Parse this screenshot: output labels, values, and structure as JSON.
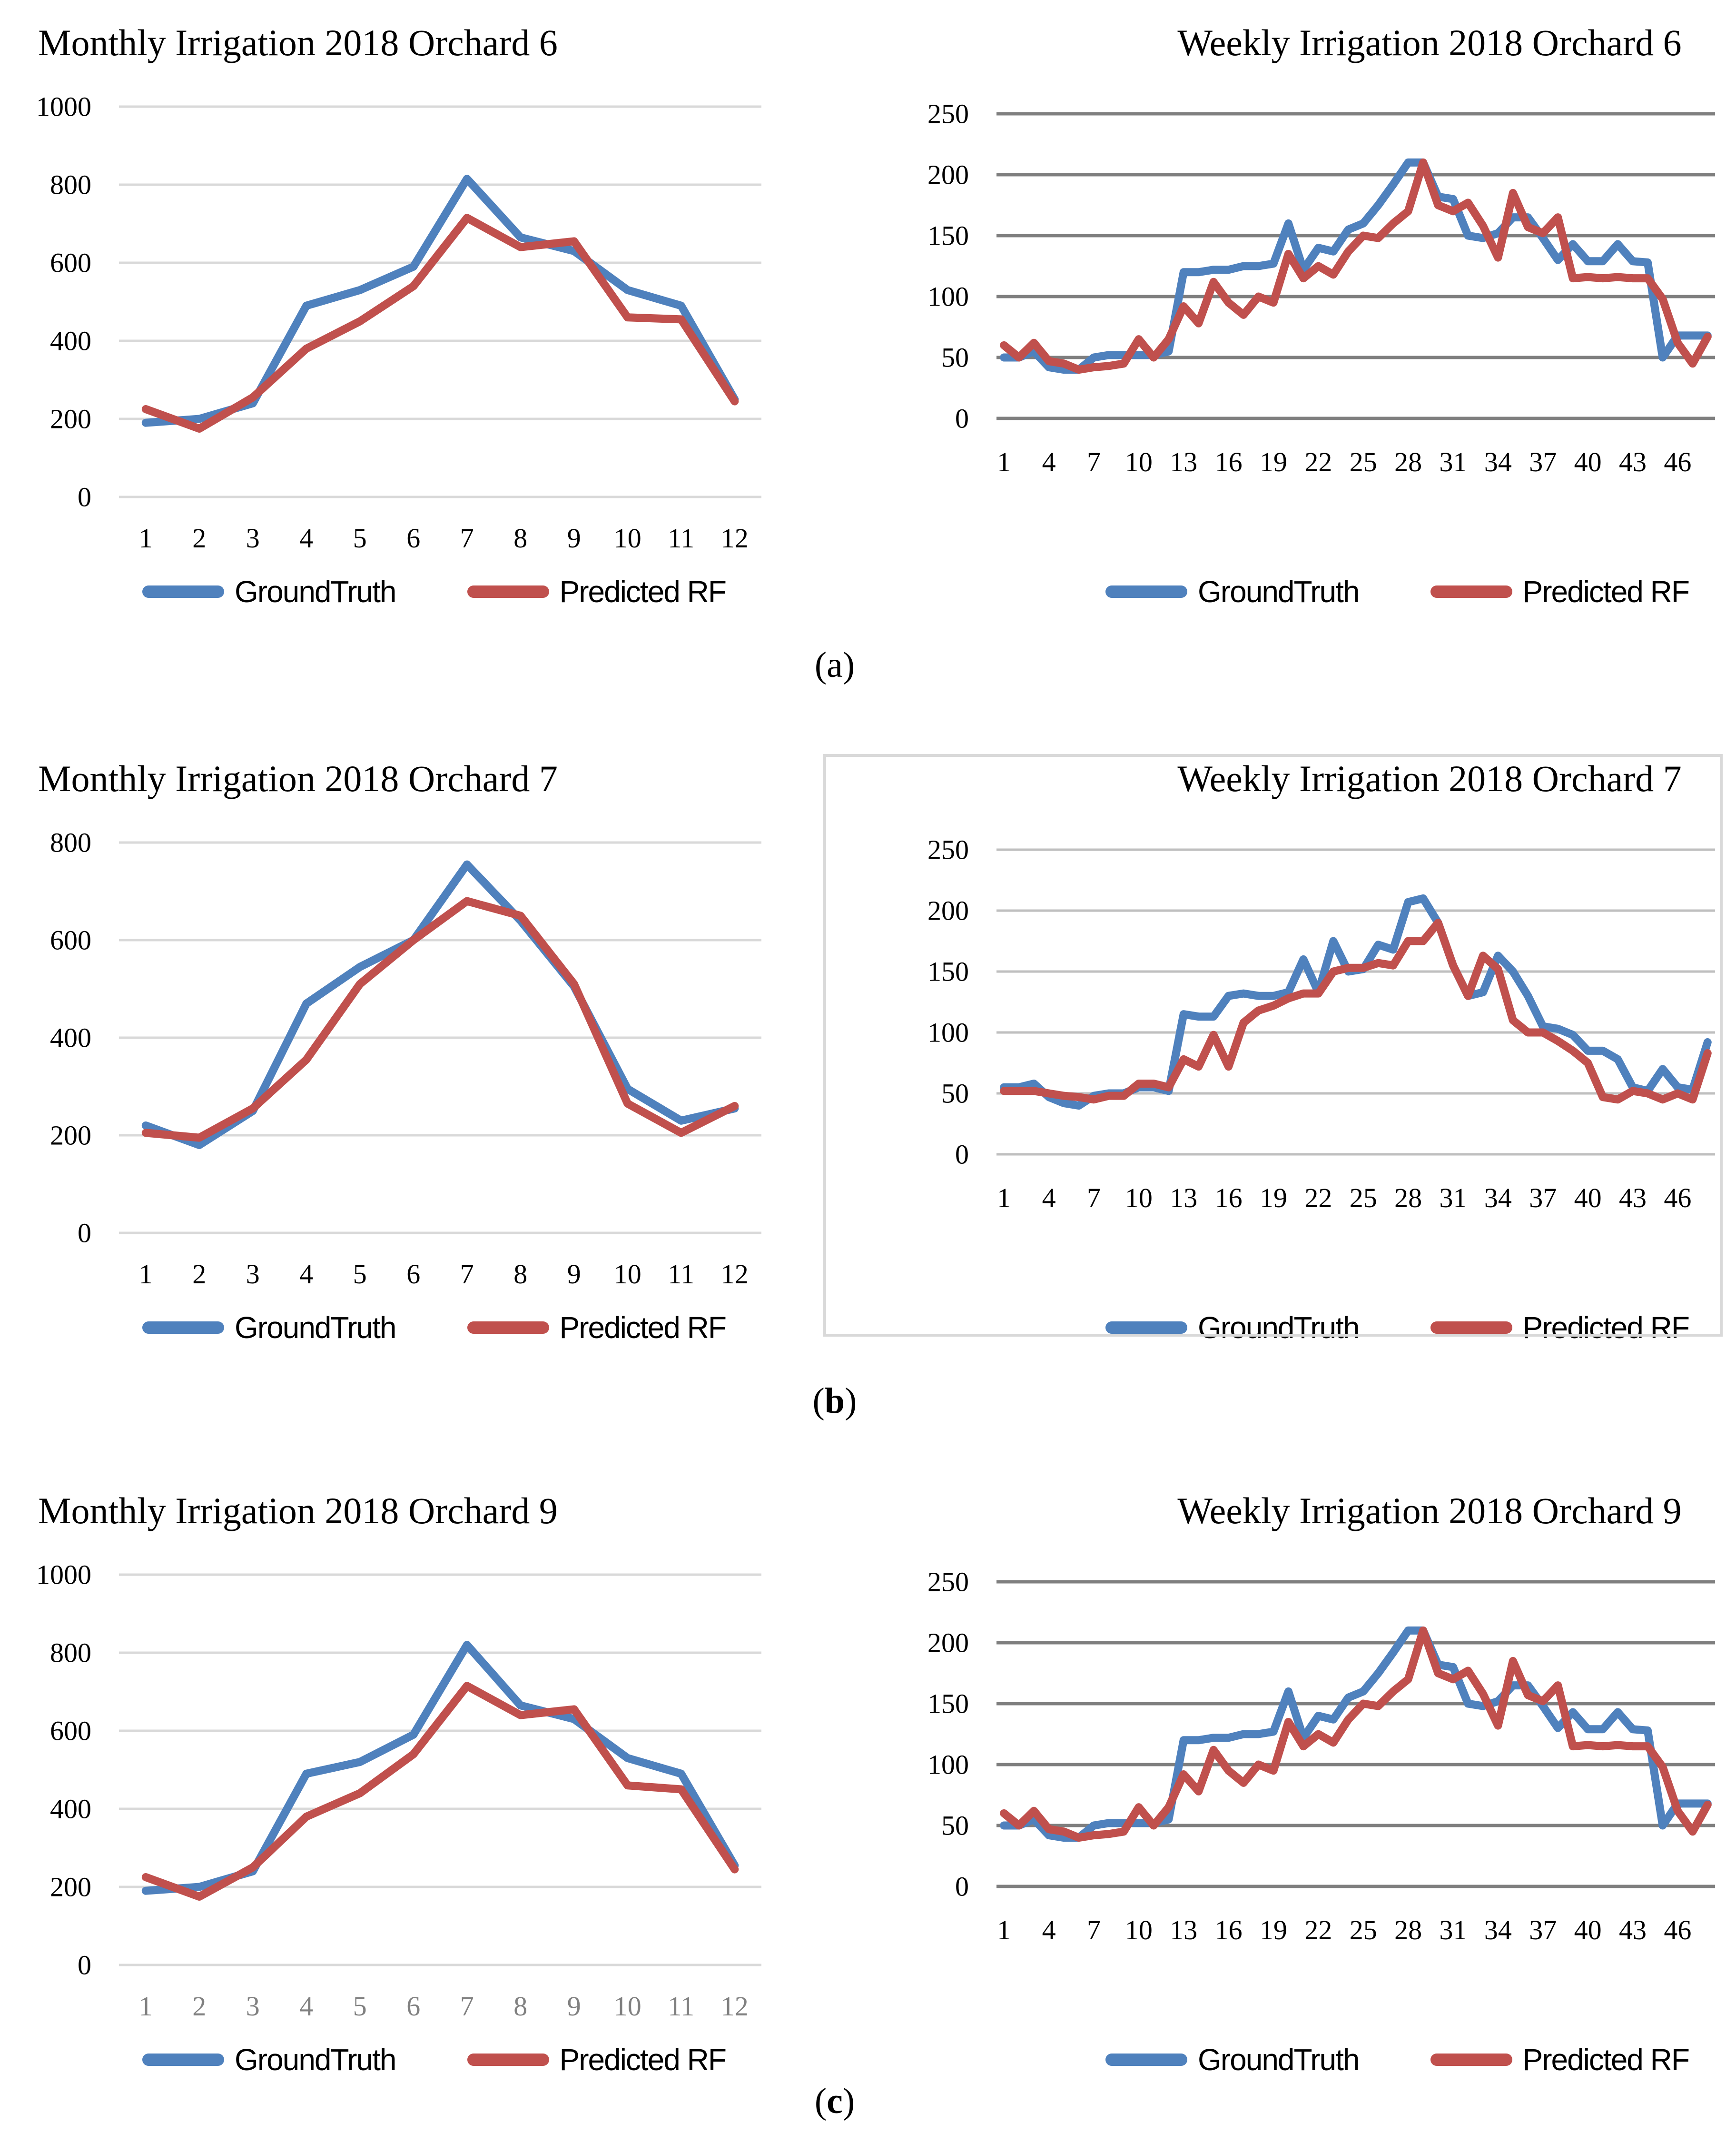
{
  "figure": {
    "captions": [
      {
        "open": "(",
        "letter": "a",
        "close": ")",
        "bold": false
      },
      {
        "open": "(",
        "letter": "b",
        "close": ")",
        "bold": true
      },
      {
        "open": "(",
        "letter": "c",
        "close": ")",
        "bold": true
      }
    ]
  },
  "legend": {
    "groundtruth": "GroundTruth",
    "predicted": "Predicted RF"
  },
  "colors": {
    "groundtruth": "#4F81BD",
    "predicted": "#C0504D",
    "grid_light": "#D9D9D9",
    "grid_medium": "#BFBFBF",
    "grid_dark": "#7F7F7F",
    "axis_text": "#000000",
    "axis_text_gray": "#808080",
    "box_border": "#D9D9D9"
  },
  "chart_data": [
    {
      "id": "monthly-orchard-6",
      "type": "line",
      "kind": "monthly",
      "title": "Monthly Irrigation 2018 Orchard 6",
      "x_tick_labels": [
        "1",
        "2",
        "3",
        "4",
        "5",
        "6",
        "7",
        "8",
        "9",
        "10",
        "11",
        "12"
      ],
      "xlabel_color": "#000000",
      "ylim": [
        0,
        1000
      ],
      "ytick": 200,
      "grid": "light",
      "boxed": false,
      "legend_position": "bottom",
      "series": [
        {
          "name": "GroundTruth",
          "color": "#4F81BD",
          "values": [
            190,
            200,
            240,
            490,
            530,
            590,
            815,
            665,
            630,
            530,
            490,
            250
          ]
        },
        {
          "name": "Predicted RF",
          "color": "#C0504D",
          "values": [
            225,
            175,
            255,
            380,
            450,
            540,
            715,
            640,
            655,
            460,
            455,
            245
          ]
        }
      ]
    },
    {
      "id": "weekly-orchard-6",
      "type": "line",
      "kind": "weekly",
      "title": "Weekly Irrigation 2018 Orchard 6",
      "x_tick_labels": [
        "1",
        "4",
        "7",
        "10",
        "13",
        "16",
        "19",
        "22",
        "25",
        "28",
        "31",
        "34",
        "37",
        "40",
        "43",
        "46"
      ],
      "xlabel_color": "#000000",
      "ylim": [
        0,
        250
      ],
      "ytick": 50,
      "grid": "dark",
      "boxed": false,
      "legend_position": "bottom",
      "series": [
        {
          "name": "GroundTruth",
          "color": "#4F81BD",
          "values": [
            50,
            50,
            55,
            42,
            40,
            40,
            50,
            52,
            52,
            52,
            52,
            55,
            120,
            120,
            122,
            122,
            125,
            125,
            127,
            160,
            122,
            140,
            137,
            155,
            160,
            175,
            192,
            210,
            210,
            182,
            180,
            150,
            148,
            152,
            165,
            165,
            148,
            130,
            143,
            129,
            129,
            143,
            129,
            128,
            50,
            68,
            68,
            68
          ]
        },
        {
          "name": "Predicted RF",
          "color": "#C0504D",
          "values": [
            60,
            50,
            62,
            47,
            45,
            40,
            42,
            43,
            45,
            65,
            50,
            65,
            92,
            78,
            112,
            95,
            85,
            100,
            95,
            135,
            115,
            125,
            118,
            137,
            150,
            148,
            160,
            170,
            210,
            175,
            170,
            177,
            158,
            132,
            185,
            157,
            152,
            165,
            115,
            116,
            115,
            116,
            115,
            115,
            98,
            62,
            45,
            67
          ]
        }
      ]
    },
    {
      "id": "monthly-orchard-7",
      "type": "line",
      "kind": "monthly",
      "title": "Monthly Irrigation 2018 Orchard 7",
      "x_tick_labels": [
        "1",
        "2",
        "3",
        "4",
        "5",
        "6",
        "7",
        "8",
        "9",
        "10",
        "11",
        "12"
      ],
      "xlabel_color": "#000000",
      "ylim": [
        0,
        800
      ],
      "ytick": 200,
      "grid": "light",
      "boxed": false,
      "legend_position": "bottom",
      "series": [
        {
          "name": "GroundTruth",
          "color": "#4F81BD",
          "values": [
            220,
            180,
            250,
            470,
            545,
            600,
            755,
            640,
            505,
            295,
            230,
            255
          ]
        },
        {
          "name": "Predicted RF",
          "color": "#C0504D",
          "values": [
            205,
            195,
            255,
            355,
            510,
            600,
            680,
            650,
            510,
            265,
            205,
            260
          ]
        }
      ]
    },
    {
      "id": "weekly-orchard-7",
      "type": "line",
      "kind": "weekly",
      "title": "Weekly Irrigation 2018 Orchard 7",
      "x_tick_labels": [
        "1",
        "4",
        "7",
        "10",
        "13",
        "16",
        "19",
        "22",
        "25",
        "28",
        "31",
        "34",
        "37",
        "40",
        "43",
        "46"
      ],
      "xlabel_color": "#000000",
      "ylim": [
        0,
        250
      ],
      "ytick": 50,
      "grid": "medium",
      "boxed": true,
      "legend_position": "bottom",
      "series": [
        {
          "name": "GroundTruth",
          "color": "#4F81BD",
          "values": [
            55,
            55,
            58,
            47,
            42,
            40,
            48,
            50,
            50,
            55,
            55,
            52,
            115,
            113,
            113,
            130,
            132,
            130,
            130,
            133,
            160,
            133,
            175,
            150,
            152,
            172,
            168,
            207,
            210,
            190,
            155,
            130,
            133,
            163,
            150,
            130,
            105,
            103,
            98,
            85,
            85,
            78,
            55,
            52,
            70,
            55,
            53,
            92
          ]
        },
        {
          "name": "Predicted RF",
          "color": "#C0504D",
          "values": [
            52,
            52,
            52,
            50,
            48,
            47,
            45,
            48,
            48,
            58,
            58,
            55,
            78,
            72,
            98,
            72,
            108,
            118,
            122,
            128,
            132,
            132,
            150,
            153,
            153,
            157,
            155,
            175,
            175,
            190,
            155,
            130,
            163,
            152,
            110,
            100,
            100,
            93,
            85,
            75,
            47,
            45,
            52,
            50,
            45,
            50,
            45,
            83
          ]
        }
      ]
    },
    {
      "id": "monthly-orchard-9",
      "type": "line",
      "kind": "monthly",
      "title": "Monthly Irrigation 2018 Orchard 9",
      "x_tick_labels": [
        "1",
        "2",
        "3",
        "4",
        "5",
        "6",
        "7",
        "8",
        "9",
        "10",
        "11",
        "12"
      ],
      "xlabel_color": "#808080",
      "ylim": [
        0,
        1000
      ],
      "ytick": 200,
      "grid": "light",
      "boxed": false,
      "legend_position": "bottom",
      "series": [
        {
          "name": "GroundTruth",
          "color": "#4F81BD",
          "values": [
            190,
            200,
            240,
            490,
            520,
            590,
            820,
            665,
            630,
            530,
            490,
            255
          ]
        },
        {
          "name": "Predicted RF",
          "color": "#C0504D",
          "values": [
            225,
            175,
            250,
            380,
            440,
            540,
            715,
            640,
            655,
            460,
            450,
            245
          ]
        }
      ]
    },
    {
      "id": "weekly-orchard-9",
      "type": "line",
      "kind": "weekly",
      "title": "Weekly Irrigation 2018 Orchard 9",
      "x_tick_labels": [
        "1",
        "4",
        "7",
        "10",
        "13",
        "16",
        "19",
        "22",
        "25",
        "28",
        "31",
        "34",
        "37",
        "40",
        "43",
        "46"
      ],
      "xlabel_color": "#000000",
      "ylim": [
        0,
        250
      ],
      "ytick": 50,
      "grid": "dark",
      "boxed": false,
      "legend_position": "bottom",
      "series": [
        {
          "name": "GroundTruth",
          "color": "#4F81BD",
          "values": [
            50,
            50,
            55,
            42,
            40,
            40,
            50,
            52,
            52,
            52,
            52,
            55,
            120,
            120,
            122,
            122,
            125,
            125,
            127,
            160,
            122,
            140,
            137,
            155,
            160,
            175,
            192,
            210,
            210,
            182,
            180,
            150,
            148,
            152,
            165,
            165,
            148,
            130,
            143,
            129,
            129,
            143,
            129,
            128,
            50,
            68,
            68,
            68
          ]
        },
        {
          "name": "Predicted RF",
          "color": "#C0504D",
          "values": [
            60,
            50,
            62,
            47,
            45,
            40,
            42,
            43,
            45,
            65,
            50,
            65,
            92,
            78,
            112,
            95,
            85,
            100,
            95,
            135,
            115,
            125,
            118,
            137,
            150,
            148,
            160,
            170,
            210,
            175,
            170,
            177,
            158,
            132,
            185,
            157,
            152,
            165,
            115,
            116,
            115,
            116,
            115,
            115,
            98,
            62,
            45,
            67
          ]
        }
      ]
    }
  ]
}
